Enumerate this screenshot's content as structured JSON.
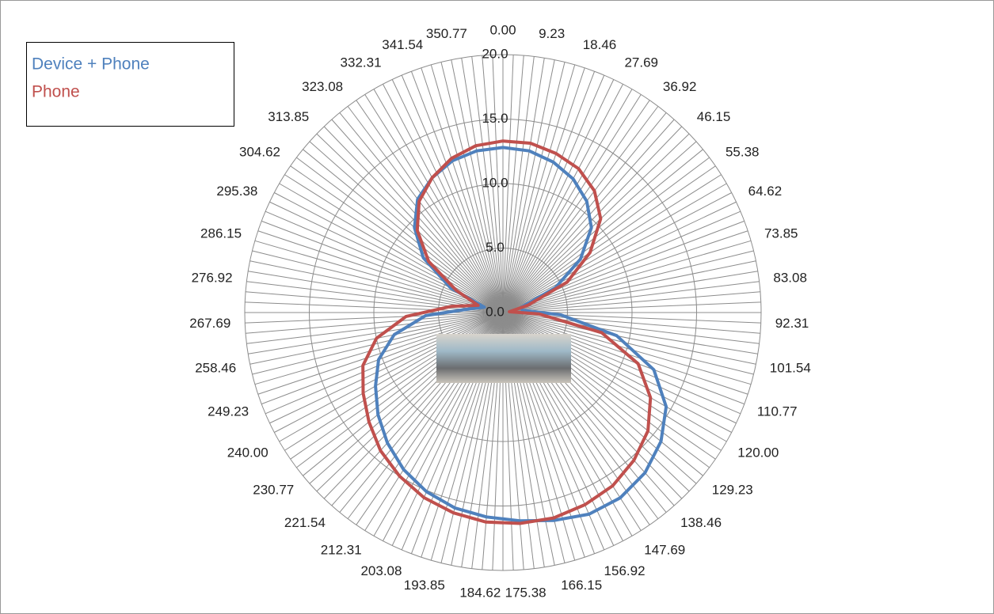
{
  "chart_data": {
    "type": "radar",
    "categories": [
      "0.00",
      "9.23",
      "18.46",
      "27.69",
      "36.92",
      "46.15",
      "55.38",
      "64.62",
      "73.85",
      "83.08",
      "92.31",
      "101.54",
      "110.77",
      "120.00",
      "129.23",
      "138.46",
      "147.69",
      "156.92",
      "166.15",
      "175.38",
      "184.62",
      "193.85",
      "203.08",
      "212.31",
      "221.54",
      "230.77",
      "240.00",
      "249.23",
      "258.46",
      "267.69",
      "276.92",
      "286.15",
      "295.38",
      "304.62",
      "313.85",
      "323.08",
      "332.31",
      "341.54",
      "350.77"
    ],
    "series": [
      {
        "name": "Device + Phone",
        "color": "#4f81bd",
        "values": [
          12.8,
          12.7,
          12.3,
          11.7,
          10.8,
          9.5,
          7.3,
          4.5,
          1.5,
          1.5,
          4.5,
          9.0,
          12.5,
          14.6,
          15.8,
          16.6,
          17.0,
          17.0,
          16.6,
          16.2,
          15.9,
          15.6,
          15.1,
          14.4,
          13.5,
          12.5,
          11.4,
          10.3,
          8.6,
          6.0,
          2.5,
          1.5,
          4.5,
          7.5,
          9.5,
          11.0,
          11.8,
          12.4,
          12.7
        ]
      },
      {
        "name": "Phone",
        "color": "#c0504d",
        "values": [
          13.3,
          13.3,
          13.0,
          12.6,
          11.8,
          10.5,
          8.2,
          5.5,
          2.0,
          0.5,
          2.8,
          7.8,
          11.2,
          13.2,
          14.5,
          15.3,
          15.9,
          16.2,
          16.4,
          16.4,
          16.3,
          16.0,
          15.6,
          15.0,
          14.3,
          13.4,
          12.5,
          11.6,
          10.0,
          7.5,
          4.0,
          2.0,
          4.0,
          7.0,
          9.2,
          10.8,
          11.8,
          12.6,
          13.1
        ]
      }
    ],
    "ylim": [
      0,
      20
    ],
    "yticks": [
      {
        "value": 0,
        "label": "0.0"
      },
      {
        "value": 5,
        "label": "5.0"
      },
      {
        "value": 10,
        "label": "10.0"
      },
      {
        "value": 15,
        "label": "15.0"
      },
      {
        "value": 20,
        "label": "20.0"
      }
    ],
    "grid": true
  }
}
